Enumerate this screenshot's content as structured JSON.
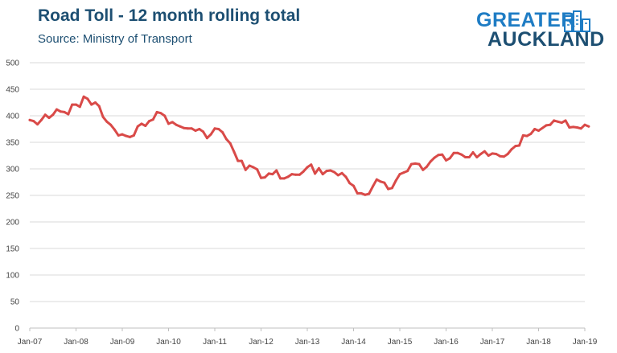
{
  "header": {
    "title": "Road Toll - 12 month rolling total",
    "subtitle": "Source: Ministry of Transport"
  },
  "logo": {
    "line1": "GREATER",
    "line2": "AUCKLAND"
  },
  "colors": {
    "title": "#1d4f72",
    "line": "#d94a48",
    "logo_blue": "#1e7cc4"
  },
  "chart_data": {
    "type": "line",
    "title": "Road Toll - 12 month rolling total",
    "subtitle": "Source: Ministry of Transport",
    "xlabel": "",
    "ylabel": "",
    "ylim": [
      0,
      500
    ],
    "yticks": [
      0,
      50,
      100,
      150,
      200,
      250,
      300,
      350,
      400,
      450,
      500
    ],
    "xticks": [
      "Jan-07",
      "Jan-08",
      "Jan-09",
      "Jan-10",
      "Jan-11",
      "Jan-12",
      "Jan-13",
      "Jan-14",
      "Jan-15",
      "Jan-16",
      "Jan-17",
      "Jan-18",
      "Jan-19"
    ],
    "grid": "horizontal",
    "legend": "none",
    "x_start": "Jan-07",
    "x_frequency": "monthly",
    "series": [
      {
        "values": [
          392,
          390,
          384,
          392,
          402,
          396,
          402,
          412,
          408,
          407,
          403,
          421,
          421,
          417,
          436,
          432,
          421,
          425,
          418,
          398,
          389,
          383,
          374,
          363,
          365,
          362,
          360,
          363,
          380,
          385,
          381,
          390,
          393,
          407,
          405,
          400,
          385,
          388,
          383,
          380,
          377,
          376,
          376,
          372,
          375,
          370,
          358,
          365,
          376,
          375,
          369,
          356,
          348,
          332,
          315,
          315,
          298,
          306,
          303,
          299,
          283,
          284,
          291,
          290,
          297,
          282,
          282,
          285,
          290,
          289,
          289,
          295,
          303,
          308,
          291,
          301,
          290,
          296,
          297,
          294,
          288,
          292,
          285,
          273,
          268,
          254,
          254,
          251,
          253,
          267,
          280,
          276,
          274,
          262,
          264,
          278,
          290,
          293,
          296,
          309,
          310,
          309,
          298,
          304,
          314,
          321,
          326,
          327,
          316,
          320,
          330,
          330,
          327,
          322,
          322,
          331,
          322,
          328,
          333,
          325,
          329,
          328,
          324,
          323,
          328,
          337,
          343,
          344,
          363,
          362,
          366,
          375,
          372,
          377,
          382,
          383,
          391,
          389,
          387,
          391,
          378,
          379,
          378,
          376,
          383,
          380
        ]
      }
    ]
  }
}
